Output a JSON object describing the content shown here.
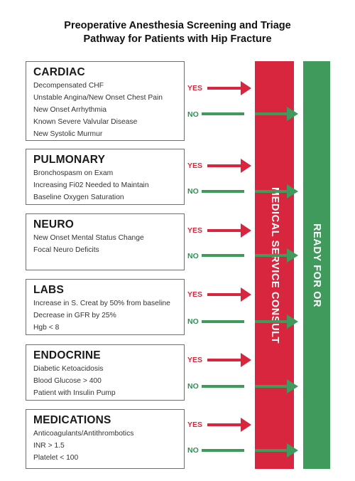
{
  "title": {
    "line1": "Preoperative Anesthesia Screening and Triage",
    "line2": "Pathway for Patients with Hip Fracture"
  },
  "yes_label": "YES",
  "no_label": "NO",
  "bars": {
    "consult": "MEDICAL SERVICE CONSULT",
    "ready": "READY FOR OR"
  },
  "colors": {
    "red": "#d7263d",
    "green": "#3f9a5c"
  },
  "sections": [
    {
      "heading": "CARDIAC",
      "items": [
        "Decompensated CHF",
        "Unstable Angina/New Onset Chest Pain",
        "New Onset Arrhythmia",
        "Known Severe Valvular Disease",
        "New Systolic Murmur"
      ]
    },
    {
      "heading": "PULMONARY",
      "items": [
        "Bronchospasm on Exam",
        "Increasing Fi02 Needed to Maintain",
        "Baseline Oxygen Saturation"
      ]
    },
    {
      "heading": "NEURO",
      "items": [
        "New Onset Mental Status Change",
        "Focal Neuro Deficits"
      ]
    },
    {
      "heading": "LABS",
      "items": [
        "Increase in S. Creat by 50% from baseline",
        "Decrease in GFR by 25%",
        "Hgb < 8"
      ]
    },
    {
      "heading": "ENDOCRINE",
      "items": [
        "Diabetic Ketoacidosis",
        "Blood Glucose > 400",
        "Patient with Insulin Pump"
      ]
    },
    {
      "heading": "MEDICATIONS",
      "items": [
        "Anticoagulants/Antithrombotics",
        "INR > 1.5",
        "Platelet < 100"
      ]
    }
  ]
}
